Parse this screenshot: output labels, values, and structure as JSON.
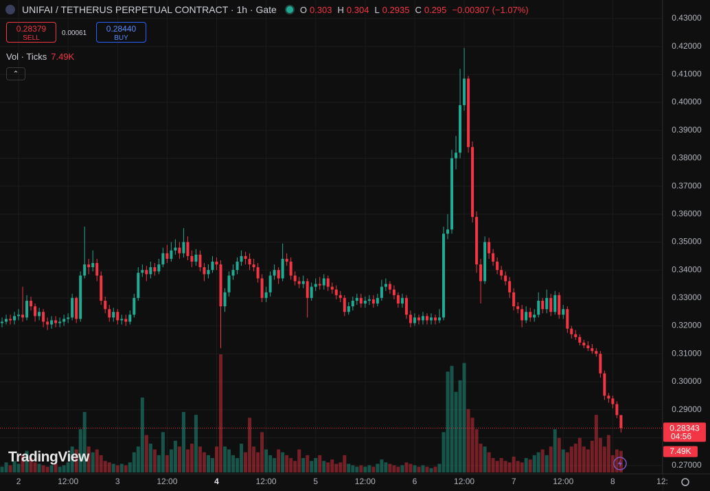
{
  "chart_data": {
    "type": "candlestick",
    "title": "UNIFAI / TETHERUS PERPETUAL CONTRACT · 1h · Gate",
    "ohlc_labels": [
      "O",
      "H",
      "L",
      "C"
    ],
    "change": "−0.00307 (−1.07%)",
    "sell_price": "0.28379",
    "sell_label": "SELL",
    "spread": "0.00061",
    "buy_price": "0.28440",
    "buy_label": "BUY",
    "volume_legend": "Vol · Ticks",
    "volume_label": "7.49K",
    "countdown": "04:56",
    "watermark": "TradingView",
    "up_color": "#22ab94",
    "down_color": "#f23645",
    "grid": true,
    "xlim": [
      -4.5,
      156
    ],
    "xticks": [
      {
        "value": 0,
        "label": "2"
      },
      {
        "value": 12,
        "label": "12:00"
      },
      {
        "value": 24,
        "label": "3"
      },
      {
        "value": 36,
        "label": "12:00"
      },
      {
        "value": 48,
        "label": "4"
      },
      {
        "value": 60,
        "label": "12:00"
      },
      {
        "value": 72,
        "label": "5"
      },
      {
        "value": 84,
        "label": "12:00"
      },
      {
        "value": 96,
        "label": "6"
      },
      {
        "value": 108,
        "label": "12:00"
      },
      {
        "value": 120,
        "label": "7"
      },
      {
        "value": 132,
        "label": "12:00"
      },
      {
        "value": 144,
        "label": "8"
      },
      {
        "value": 156,
        "label": "12:"
      }
    ],
    "ylim": [
      0.27,
      0.43
    ],
    "yticks": [
      {
        "value": 0.27,
        "label": "0.27000"
      },
      {
        "value": 0.28,
        "label": "0.28000"
      },
      {
        "value": 0.29,
        "label": "0.29000"
      },
      {
        "value": 0.3,
        "label": "0.30000"
      },
      {
        "value": 0.31,
        "label": "0.31000"
      },
      {
        "value": 0.32,
        "label": "0.32000"
      },
      {
        "value": 0.33,
        "label": "0.33000"
      },
      {
        "value": 0.34,
        "label": "0.34000"
      },
      {
        "value": 0.35,
        "label": "0.35000"
      },
      {
        "value": 0.36,
        "label": "0.36000"
      },
      {
        "value": 0.37,
        "label": "0.37000"
      },
      {
        "value": 0.38,
        "label": "0.38000"
      },
      {
        "value": 0.39,
        "label": "0.39000"
      },
      {
        "value": 0.4,
        "label": "0.40000"
      },
      {
        "value": 0.41,
        "label": "0.41000"
      },
      {
        "value": 0.42,
        "label": "0.42000"
      },
      {
        "value": 0.43,
        "label": "0.43000"
      }
    ],
    "x": [
      -4,
      -3,
      -2,
      -1,
      0,
      1,
      2,
      3,
      4,
      5,
      6,
      7,
      8,
      9,
      10,
      11,
      12,
      13,
      14,
      15,
      16,
      17,
      18,
      19,
      20,
      21,
      22,
      23,
      24,
      25,
      26,
      27,
      28,
      29,
      30,
      31,
      32,
      33,
      34,
      35,
      36,
      37,
      38,
      39,
      40,
      41,
      42,
      43,
      44,
      45,
      46,
      47,
      48,
      49,
      50,
      51,
      52,
      53,
      54,
      55,
      56,
      57,
      58,
      59,
      60,
      61,
      62,
      63,
      64,
      65,
      66,
      67,
      68,
      69,
      70,
      71,
      72,
      73,
      74,
      75,
      76,
      77,
      78,
      79,
      80,
      81,
      82,
      83,
      84,
      85,
      86,
      87,
      88,
      89,
      90,
      91,
      92,
      93,
      94,
      95,
      96,
      97,
      98,
      99,
      100,
      101,
      102,
      103,
      104,
      105,
      106,
      107,
      108,
      109,
      110,
      111,
      112,
      113,
      114,
      115,
      116,
      117,
      118,
      119,
      120,
      121,
      122,
      123,
      124,
      125,
      126,
      127,
      128,
      129,
      130,
      131,
      132,
      133,
      134,
      135,
      136,
      137,
      138,
      139,
      140,
      141,
      142,
      143,
      144,
      145,
      146
    ],
    "open": [
      0.321,
      0.3215,
      0.3225,
      0.322,
      0.3235,
      0.324,
      0.323,
      0.329,
      0.327,
      0.3235,
      0.325,
      0.3215,
      0.3205,
      0.322,
      0.321,
      0.3215,
      0.3225,
      0.323,
      0.33,
      0.3225,
      0.338,
      0.342,
      0.341,
      0.3425,
      0.338,
      0.329,
      0.326,
      0.323,
      0.325,
      0.322,
      0.3225,
      0.3215,
      0.324,
      0.33,
      0.339,
      0.34,
      0.3385,
      0.341,
      0.3395,
      0.342,
      0.346,
      0.344,
      0.347,
      0.348,
      0.346,
      0.35,
      0.345,
      0.343,
      0.3455,
      0.341,
      0.3385,
      0.34,
      0.343,
      0.342,
      0.327,
      0.332,
      0.338,
      0.34,
      0.343,
      0.345,
      0.344,
      0.342,
      0.341,
      0.337,
      0.33,
      0.332,
      0.338,
      0.34,
      0.337,
      0.344,
      0.343,
      0.338,
      0.336,
      0.335,
      0.336,
      0.33,
      0.334,
      0.335,
      0.3345,
      0.337,
      0.334,
      0.333,
      0.331,
      0.33,
      0.325,
      0.327,
      0.329,
      0.33,
      0.328,
      0.329,
      0.3295,
      0.328,
      0.33,
      0.334,
      0.335,
      0.333,
      0.331,
      0.328,
      0.33,
      0.324,
      0.321,
      0.323,
      0.322,
      0.3235,
      0.322,
      0.323,
      0.322,
      0.323,
      0.353,
      0.3545,
      0.38,
      0.382,
      0.399,
      0.4085,
      0.384,
      0.359,
      0.342,
      0.336,
      0.35,
      0.346,
      0.343,
      0.34,
      0.338,
      0.336,
      0.332,
      0.327,
      0.326,
      0.322,
      0.325,
      0.323,
      0.324,
      0.329,
      0.326,
      0.33,
      0.325,
      0.331,
      0.324,
      0.326,
      0.319,
      0.317,
      0.316,
      0.314,
      0.313,
      0.312,
      0.311,
      0.31,
      0.303,
      0.295,
      0.294,
      0.292,
      0.28808
    ],
    "high": [
      0.323,
      0.324,
      0.324,
      0.325,
      0.326,
      0.334,
      0.331,
      0.3305,
      0.328,
      0.3265,
      0.326,
      0.323,
      0.3235,
      0.3235,
      0.323,
      0.324,
      0.3245,
      0.3315,
      0.3305,
      0.3395,
      0.3555,
      0.344,
      0.347,
      0.344,
      0.3395,
      0.3305,
      0.3275,
      0.3265,
      0.326,
      0.324,
      0.324,
      0.3255,
      0.3315,
      0.341,
      0.342,
      0.3415,
      0.343,
      0.3425,
      0.344,
      0.348,
      0.349,
      0.35,
      0.351,
      0.35,
      0.355,
      0.352,
      0.347,
      0.3475,
      0.347,
      0.3425,
      0.342,
      0.345,
      0.3445,
      0.3435,
      0.3335,
      0.3395,
      0.342,
      0.3445,
      0.347,
      0.3465,
      0.346,
      0.344,
      0.3425,
      0.3385,
      0.334,
      0.3395,
      0.342,
      0.341,
      0.3495,
      0.346,
      0.3445,
      0.3395,
      0.3375,
      0.338,
      0.337,
      0.3355,
      0.337,
      0.3375,
      0.3385,
      0.338,
      0.3355,
      0.3345,
      0.3325,
      0.331,
      0.3285,
      0.3305,
      0.3315,
      0.3315,
      0.3305,
      0.331,
      0.331,
      0.3315,
      0.3365,
      0.337,
      0.336,
      0.3345,
      0.332,
      0.3315,
      0.331,
      0.3255,
      0.3245,
      0.324,
      0.325,
      0.3245,
      0.3245,
      0.324,
      0.326,
      0.3555,
      0.36,
      0.383,
      0.388,
      0.412,
      0.4195,
      0.4095,
      0.386,
      0.361,
      0.344,
      0.352,
      0.3515,
      0.3475,
      0.3445,
      0.3415,
      0.3395,
      0.3375,
      0.3335,
      0.3285,
      0.3275,
      0.327,
      0.3265,
      0.326,
      0.332,
      0.33,
      0.333,
      0.3315,
      0.3325,
      0.332,
      0.3275,
      0.327,
      0.32,
      0.3185,
      0.317,
      0.315,
      0.3145,
      0.3135,
      0.312,
      0.311,
      0.304,
      0.296,
      0.295,
      0.293,
      0.28808
    ],
    "low": [
      0.3195,
      0.3205,
      0.3205,
      0.3205,
      0.322,
      0.3215,
      0.322,
      0.3255,
      0.3215,
      0.322,
      0.3195,
      0.3185,
      0.319,
      0.3195,
      0.3195,
      0.32,
      0.321,
      0.322,
      0.321,
      0.3215,
      0.337,
      0.3385,
      0.3395,
      0.336,
      0.3275,
      0.3245,
      0.3215,
      0.3215,
      0.3205,
      0.3205,
      0.32,
      0.3205,
      0.323,
      0.329,
      0.3375,
      0.336,
      0.337,
      0.338,
      0.3385,
      0.341,
      0.3425,
      0.343,
      0.3455,
      0.344,
      0.3445,
      0.3435,
      0.341,
      0.3415,
      0.3395,
      0.336,
      0.337,
      0.339,
      0.34,
      0.312,
      0.325,
      0.3305,
      0.3365,
      0.3385,
      0.3415,
      0.342,
      0.34,
      0.3395,
      0.3355,
      0.3285,
      0.3285,
      0.3305,
      0.3365,
      0.335,
      0.336,
      0.3415,
      0.3365,
      0.3345,
      0.3335,
      0.3335,
      0.323,
      0.329,
      0.3325,
      0.333,
      0.333,
      0.3325,
      0.3315,
      0.3295,
      0.3285,
      0.3235,
      0.324,
      0.3255,
      0.3275,
      0.3265,
      0.3265,
      0.3275,
      0.3265,
      0.327,
      0.329,
      0.3325,
      0.3315,
      0.3295,
      0.3265,
      0.3265,
      0.3225,
      0.3195,
      0.32,
      0.3205,
      0.3205,
      0.3205,
      0.3205,
      0.3205,
      0.321,
      0.322,
      0.351,
      0.353,
      0.376,
      0.38,
      0.397,
      0.382,
      0.357,
      0.339,
      0.328,
      0.335,
      0.344,
      0.3415,
      0.3385,
      0.3365,
      0.3345,
      0.33,
      0.3255,
      0.3245,
      0.3195,
      0.321,
      0.3215,
      0.3215,
      0.323,
      0.3245,
      0.3245,
      0.3235,
      0.324,
      0.3225,
      0.3225,
      0.3175,
      0.3155,
      0.315,
      0.313,
      0.312,
      0.311,
      0.31,
      0.309,
      0.3015,
      0.2935,
      0.2925,
      0.2905,
      0.287,
      0.28185
    ],
    "close": [
      0.3215,
      0.3225,
      0.322,
      0.3235,
      0.324,
      0.323,
      0.329,
      0.327,
      0.3235,
      0.325,
      0.3215,
      0.3205,
      0.322,
      0.321,
      0.3215,
      0.3225,
      0.323,
      0.33,
      0.3225,
      0.338,
      0.342,
      0.341,
      0.3425,
      0.338,
      0.329,
      0.326,
      0.323,
      0.325,
      0.322,
      0.3225,
      0.3215,
      0.324,
      0.33,
      0.339,
      0.34,
      0.3385,
      0.341,
      0.3395,
      0.342,
      0.346,
      0.344,
      0.347,
      0.348,
      0.346,
      0.35,
      0.345,
      0.343,
      0.3455,
      0.341,
      0.3385,
      0.34,
      0.343,
      0.342,
      0.327,
      0.332,
      0.338,
      0.34,
      0.343,
      0.345,
      0.344,
      0.342,
      0.341,
      0.337,
      0.33,
      0.332,
      0.338,
      0.34,
      0.337,
      0.344,
      0.343,
      0.338,
      0.336,
      0.335,
      0.336,
      0.33,
      0.334,
      0.335,
      0.3345,
      0.337,
      0.334,
      0.333,
      0.331,
      0.33,
      0.325,
      0.327,
      0.329,
      0.33,
      0.328,
      0.329,
      0.3295,
      0.328,
      0.33,
      0.334,
      0.335,
      0.333,
      0.331,
      0.328,
      0.33,
      0.324,
      0.321,
      0.323,
      0.322,
      0.3235,
      0.322,
      0.323,
      0.322,
      0.323,
      0.353,
      0.3545,
      0.38,
      0.382,
      0.399,
      0.4085,
      0.384,
      0.359,
      0.342,
      0.336,
      0.35,
      0.346,
      0.343,
      0.34,
      0.338,
      0.336,
      0.332,
      0.327,
      0.326,
      0.322,
      0.325,
      0.323,
      0.324,
      0.329,
      0.326,
      0.33,
      0.325,
      0.331,
      0.324,
      0.326,
      0.319,
      0.317,
      0.316,
      0.314,
      0.313,
      0.312,
      0.311,
      0.31,
      0.303,
      0.295,
      0.294,
      0.292,
      0.28808,
      0.28343
    ],
    "volume": [
      2000,
      3500,
      2500,
      4000,
      3000,
      6000,
      7500,
      5000,
      3500,
      3000,
      2500,
      2000,
      2500,
      3000,
      2000,
      2500,
      3500,
      9000,
      8000,
      15000,
      21000,
      9000,
      7000,
      8000,
      6000,
      4000,
      3500,
      3000,
      2500,
      3000,
      2500,
      3500,
      7000,
      9000,
      26000,
      13000,
      10000,
      8000,
      6000,
      14000,
      6000,
      8000,
      11000,
      9000,
      21000,
      8000,
      10000,
      20000,
      9000,
      7000,
      6000,
      5000,
      9000,
      41000,
      9000,
      8000,
      6000,
      5000,
      10000,
      7000,
      19000,
      9000,
      7000,
      14000,
      8000,
      6000,
      5000,
      8000,
      7000,
      6000,
      5000,
      4000,
      8000,
      5000,
      6000,
      4000,
      5000,
      6000,
      4000,
      3500,
      4500,
      3000,
      3500,
      6000,
      3000,
      2500,
      2000,
      2500,
      2000,
      2500,
      2000,
      3000,
      4500,
      3500,
      3000,
      2500,
      2000,
      2500,
      3500,
      3000,
      2500,
      2000,
      2500,
      2000,
      1500,
      2000,
      3000,
      14000,
      35000,
      37000,
      28000,
      32000,
      38000,
      22000,
      19000,
      15000,
      10000,
      9000,
      7000,
      5000,
      4000,
      5000,
      4000,
      3500,
      5500,
      4000,
      3500,
      5000,
      4500,
      6000,
      7000,
      8000,
      6000,
      9000,
      15000,
      12000,
      8000,
      7000,
      9000,
      10000,
      12000,
      9000,
      8000,
      11000,
      20000,
      12000,
      9000,
      13000,
      6000,
      8000,
      7490
    ]
  }
}
